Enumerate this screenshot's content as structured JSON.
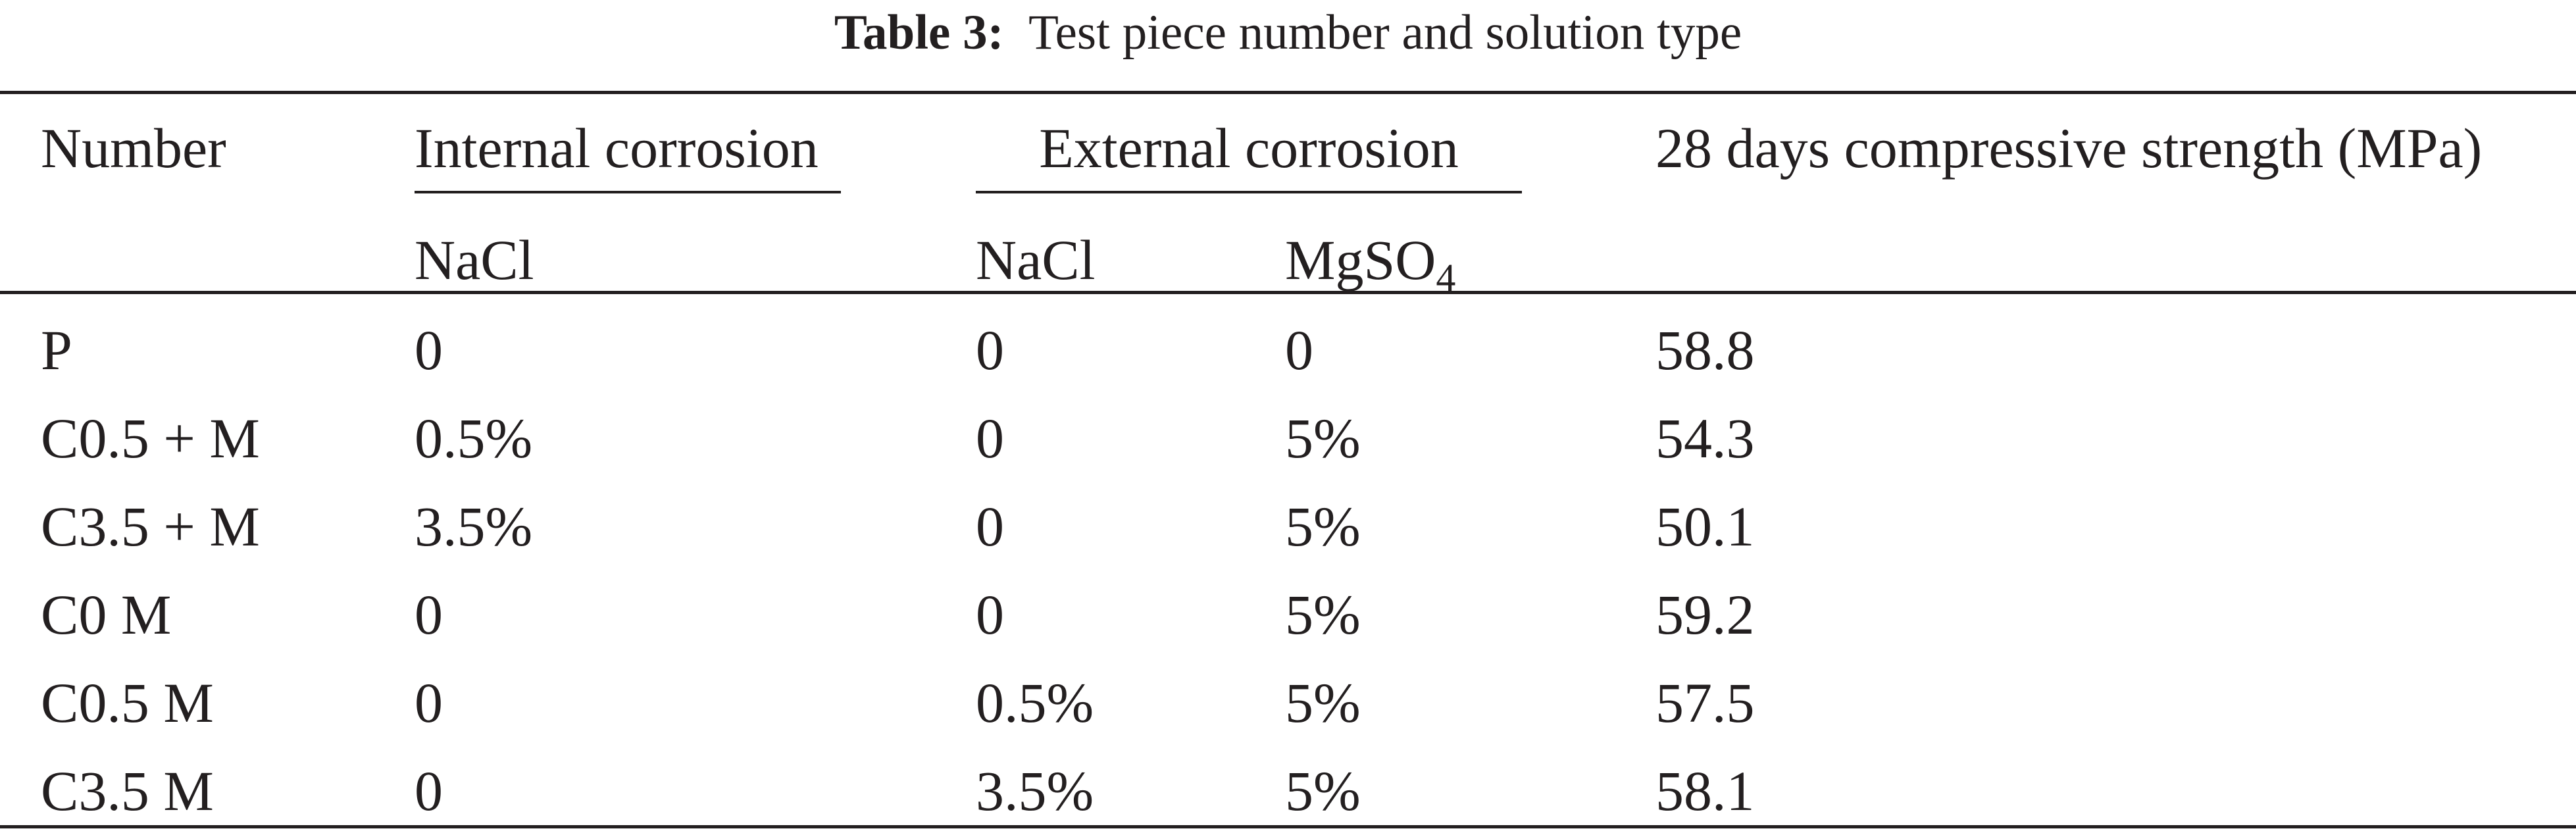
{
  "caption": {
    "label": "Table 3:",
    "text": "Test piece number and solution type"
  },
  "header": {
    "number": "Number",
    "internal_group": "Internal corrosion",
    "external_group": "External corrosion",
    "strength": "28 days compressive strength (MPa)",
    "internal_nacl": "NaCl",
    "external_nacl": "NaCl",
    "external_mgso4_base": "MgSO",
    "external_mgso4_sub": "4"
  },
  "rows": [
    {
      "number": "P",
      "internal_nacl": "0",
      "external_nacl": "0",
      "external_mgso4": "0",
      "strength": "58.8"
    },
    {
      "number": "C0.5 + M",
      "internal_nacl": "0.5%",
      "external_nacl": "0",
      "external_mgso4": "5%",
      "strength": "54.3"
    },
    {
      "number": "C3.5 + M",
      "internal_nacl": "3.5%",
      "external_nacl": "0",
      "external_mgso4": "5%",
      "strength": "50.1"
    },
    {
      "number": "C0 M",
      "internal_nacl": "0",
      "external_nacl": "0",
      "external_mgso4": "5%",
      "strength": "59.2"
    },
    {
      "number": "C0.5 M",
      "internal_nacl": "0",
      "external_nacl": "0.5%",
      "external_mgso4": "5%",
      "strength": "57.5"
    },
    {
      "number": "C3.5 M",
      "internal_nacl": "0",
      "external_nacl": "3.5%",
      "external_mgso4": "5%",
      "strength": "58.1"
    }
  ]
}
